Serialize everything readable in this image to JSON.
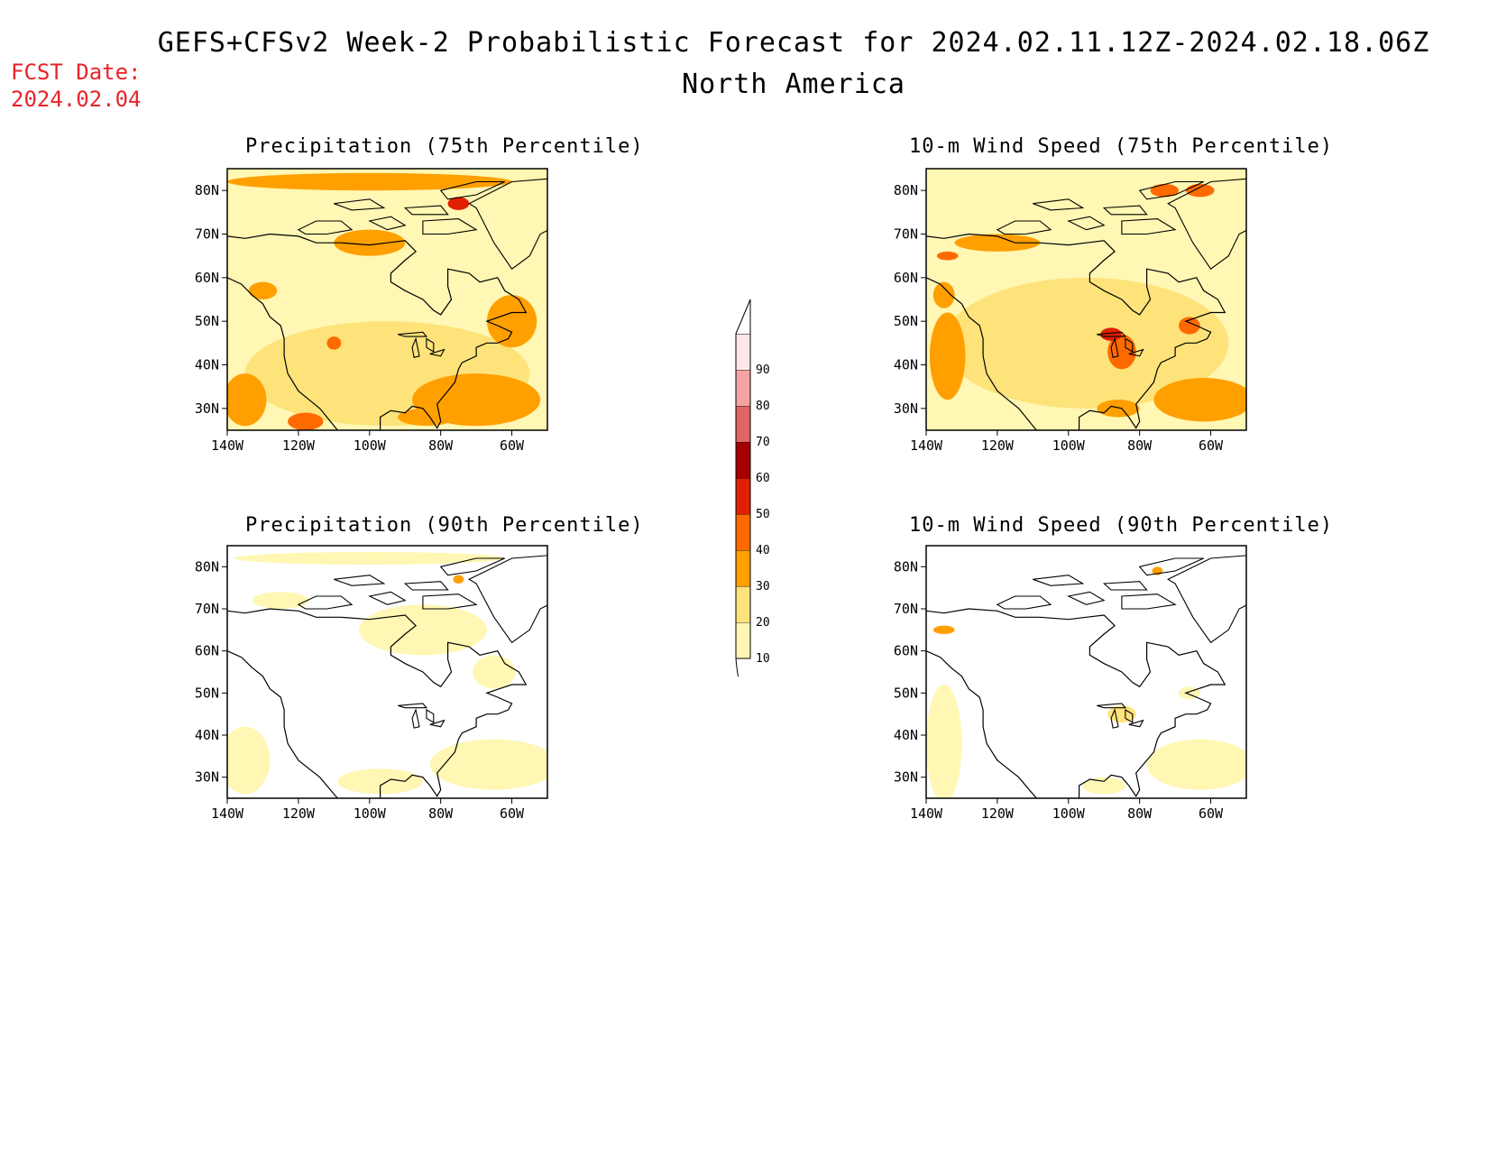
{
  "header": {
    "title": "GEFS+CFSv2 Week-2 Probabilistic Forecast for 2024.02.11.12Z-2024.02.18.06Z",
    "subtitle": "North America",
    "fcst_label": "FCST Date:",
    "fcst_date": "2024.02.04"
  },
  "panels": [
    {
      "id": "precip75",
      "title": "Precipitation (75th Percentile)",
      "variable": "Precipitation",
      "percentile": "75th"
    },
    {
      "id": "wind75",
      "title": "10-m Wind Speed (75th Percentile)",
      "variable": "10-m Wind Speed",
      "percentile": "75th"
    },
    {
      "id": "precip90",
      "title": "Precipitation (90th Percentile)",
      "variable": "Precipitation",
      "percentile": "90th"
    },
    {
      "id": "wind90",
      "title": "10-m Wind Speed (90th Percentile)",
      "variable": "10-m Wind Speed",
      "percentile": "90th"
    }
  ],
  "axes": {
    "lat_labels": [
      "80N",
      "70N",
      "60N",
      "50N",
      "40N",
      "30N"
    ],
    "lon_labels": [
      "140W",
      "120W",
      "100W",
      "80W",
      "60W"
    ],
    "lat_values": [
      80,
      70,
      60,
      50,
      40,
      30
    ],
    "lon_values": [
      -140,
      -120,
      -100,
      -80,
      -60
    ],
    "lat_range": [
      25,
      85
    ],
    "lon_range": [
      -140,
      -50
    ]
  },
  "colorbar": {
    "labels": [
      "10",
      "20",
      "30",
      "40",
      "50",
      "60",
      "70",
      "80",
      "90"
    ],
    "colors": [
      "#fff7b3",
      "#fde37a",
      "#ff9f00",
      "#ff6a00",
      "#e01f00",
      "#a50000",
      "#e06565",
      "#f4a3a3",
      "#fde8e8"
    ]
  }
}
